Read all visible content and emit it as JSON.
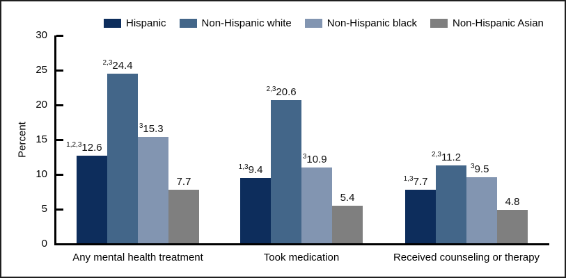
{
  "figure": {
    "background": "#ffffff",
    "border_color": "#1f1f1f"
  },
  "chart_data": {
    "type": "bar",
    "ylabel": "Percent",
    "ylim": [
      0,
      30
    ],
    "yticks": [
      0,
      5,
      10,
      15,
      20,
      25,
      30
    ],
    "grid": false,
    "legend_position": "top",
    "value_labels": true,
    "categories": [
      "Any mental health treatment",
      "Took medication",
      "Received counseling or therapy"
    ],
    "series": [
      {
        "name": "Hispanic",
        "color": "#0D2D5C",
        "values": [
          12.6,
          9.4,
          7.7
        ],
        "superscripts": [
          "1,2,3",
          "1,3",
          "1,3"
        ]
      },
      {
        "name": "Non-Hispanic white",
        "color": "#436689",
        "values": [
          24.4,
          20.6,
          11.2
        ],
        "superscripts": [
          "2,3",
          "2,3",
          "2,3"
        ]
      },
      {
        "name": "Non-Hispanic black",
        "color": "#8295B1",
        "values": [
          15.3,
          10.9,
          9.5
        ],
        "superscripts": [
          "3",
          "3",
          "3"
        ]
      },
      {
        "name": "Non-Hispanic Asian",
        "color": "#7F7F7F",
        "values": [
          7.7,
          5.4,
          4.8
        ],
        "superscripts": [
          "",
          "",
          ""
        ]
      }
    ]
  }
}
